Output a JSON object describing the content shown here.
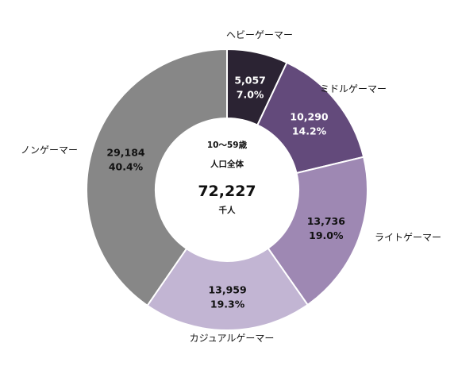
{
  "chart_data": {
    "type": "pie",
    "donut": true,
    "center": {
      "line1": "10～59歳",
      "line2": "人口全体",
      "total": "72,227",
      "unit": "千人"
    },
    "slices": [
      {
        "name": "ヘビーゲーマー",
        "value": 5057,
        "value_label": "5,057",
        "percent_label": "7.0%",
        "color": "#2b2333",
        "text_color": "#ffffff"
      },
      {
        "name": "ミドルゲーマー",
        "value": 10290,
        "value_label": "10,290",
        "percent_label": "14.2%",
        "color": "#634a7b",
        "text_color": "#ffffff"
      },
      {
        "name": "ライトゲーマー",
        "value": 13736,
        "value_label": "13,736",
        "percent_label": "19.0%",
        "color": "#9e88b3",
        "text_color": "#111111"
      },
      {
        "name": "カジュアルゲーマー",
        "value": 13959,
        "value_label": "13,959",
        "percent_label": "19.3%",
        "color": "#c2b5d3",
        "text_color": "#111111"
      },
      {
        "name": "ノンゲーマー",
        "value": 29184,
        "value_label": "29,184",
        "percent_label": "40.4%",
        "color": "#878787",
        "text_color": "#111111"
      }
    ]
  }
}
